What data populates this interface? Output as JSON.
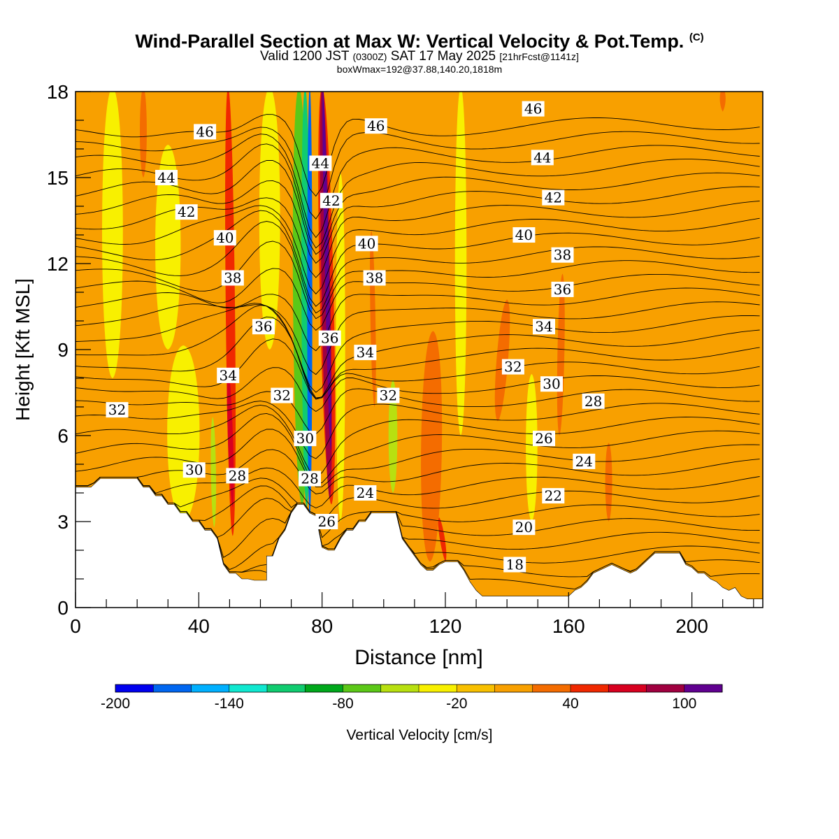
{
  "title": {
    "main": "Wind-Parallel Section at Max W: Vertical Velocity & Pot.Temp.",
    "mark": "(C)",
    "valid": "Valid 1200 JST",
    "valid_utc": "(0300Z)",
    "date": "SAT 17 May 2025",
    "fcst": "[21hrFcst@1141z]",
    "box": "boxWmax=192@37.88,140.20,1818m"
  },
  "chart_data": {
    "type": "heatmap",
    "xlabel": "Distance [nm]",
    "ylabel": "Height [Kft MSL]",
    "xlim": [
      0,
      223
    ],
    "ylim": [
      0,
      18
    ],
    "x_ticks": [
      0,
      40,
      80,
      120,
      160,
      200
    ],
    "y_ticks": [
      0,
      3,
      6,
      9,
      12,
      15,
      18
    ],
    "colorbar": {
      "label": "Vertical Velocity [cm/s]",
      "min": -200,
      "step": 20,
      "tick_labels": [
        -200,
        -140,
        -80,
        -20,
        40,
        100
      ],
      "colors": [
        "#0000ee",
        "#0066f0",
        "#00b0ff",
        "#10e8d0",
        "#10cc70",
        "#00a81c",
        "#5cc818",
        "#b8e010",
        "#f8f000",
        "#f8c000",
        "#f8a000",
        "#f46c00",
        "#f02800",
        "#d80020",
        "#a00040",
        "#600090"
      ]
    },
    "terrain_kft": [
      [
        0,
        4.2
      ],
      [
        5,
        4.2
      ],
      [
        8,
        4.5
      ],
      [
        10,
        4.5
      ],
      [
        20,
        4.5
      ],
      [
        22,
        4.2
      ],
      [
        24,
        4.2
      ],
      [
        26,
        3.9
      ],
      [
        28,
        3.9
      ],
      [
        30,
        3.6
      ],
      [
        32,
        3.6
      ],
      [
        34,
        3.3
      ],
      [
        36,
        3.3
      ],
      [
        38,
        3.0
      ],
      [
        40,
        3.0
      ],
      [
        42,
        2.7
      ],
      [
        44,
        2.7
      ],
      [
        46,
        2.4
      ],
      [
        48,
        1.5
      ],
      [
        50,
        1.2
      ],
      [
        52,
        1.2
      ],
      [
        54,
        1.0
      ],
      [
        56,
        1.0
      ],
      [
        58,
        0.95
      ],
      [
        62,
        0.95
      ],
      [
        62,
        1.8
      ],
      [
        64,
        1.8
      ],
      [
        66,
        2.4
      ],
      [
        68,
        2.7
      ],
      [
        70,
        3.3
      ],
      [
        72,
        3.6
      ],
      [
        74,
        3.6
      ],
      [
        76,
        3.3
      ],
      [
        78,
        3.2
      ],
      [
        80,
        2.1
      ],
      [
        82,
        2.0
      ],
      [
        84,
        2.0
      ],
      [
        86,
        2.4
      ],
      [
        88,
        2.7
      ],
      [
        90,
        2.7
      ],
      [
        92,
        3.0
      ],
      [
        94,
        3.0
      ],
      [
        96,
        3.3
      ],
      [
        100,
        3.3
      ],
      [
        104,
        3.3
      ],
      [
        106,
        2.4
      ],
      [
        108,
        2.1
      ],
      [
        110,
        1.8
      ],
      [
        112,
        1.5
      ],
      [
        114,
        1.3
      ],
      [
        116,
        1.3
      ],
      [
        118,
        1.5
      ],
      [
        120,
        1.6
      ],
      [
        124,
        1.6
      ],
      [
        126,
        1.3
      ],
      [
        128,
        0.9
      ],
      [
        130,
        0.6
      ],
      [
        132,
        0.4
      ],
      [
        160,
        0.4
      ],
      [
        162,
        0.6
      ],
      [
        164,
        0.7
      ],
      [
        166,
        0.9
      ],
      [
        168,
        1.2
      ],
      [
        170,
        1.3
      ],
      [
        172,
        1.4
      ],
      [
        174,
        1.5
      ],
      [
        176,
        1.4
      ],
      [
        178,
        1.3
      ],
      [
        180,
        1.2
      ],
      [
        182,
        1.3
      ],
      [
        184,
        1.5
      ],
      [
        186,
        1.7
      ],
      [
        188,
        1.9
      ],
      [
        196,
        1.9
      ],
      [
        198,
        1.5
      ],
      [
        200,
        1.4
      ],
      [
        202,
        1.2
      ],
      [
        204,
        1.2
      ],
      [
        206,
        1.0
      ],
      [
        208,
        0.9
      ],
      [
        210,
        0.7
      ],
      [
        212,
        0.6
      ],
      [
        214,
        0.7
      ],
      [
        216,
        0.4
      ],
      [
        218,
        0.3
      ],
      [
        223,
        0.3
      ]
    ],
    "w_features": [
      {
        "x": 76.0,
        "xb": 76.0,
        "w": 2.2,
        "y0": 3.2,
        "y1": 18,
        "v": -180
      },
      {
        "x": 74.5,
        "xb": 75.0,
        "w": 3.8,
        "y0": 3.5,
        "y1": 18,
        "v": -120
      },
      {
        "x": 72.5,
        "xb": 73.5,
        "w": 6.5,
        "y0": 3.6,
        "y1": 18,
        "v": -70
      },
      {
        "x": 80.0,
        "xb": 82.5,
        "w": 3.8,
        "y0": 3.8,
        "y1": 18,
        "v": 95
      },
      {
        "x": 80.3,
        "xb": 82.8,
        "w": 1.8,
        "y0": 5.5,
        "y1": 18,
        "v": 115
      },
      {
        "x": 80.0,
        "xb": 83.0,
        "w": 6.0,
        "y0": 3.6,
        "y1": 18,
        "v": 50
      },
      {
        "x": 49.5,
        "xb": 51.0,
        "w": 4.0,
        "y0": 2.5,
        "y1": 18,
        "v": 50
      },
      {
        "x": 49.5,
        "xb": 51.0,
        "w": 2.2,
        "y0": 3.5,
        "y1": 8.2,
        "v": 65
      },
      {
        "x": 44.5,
        "xb": 45.0,
        "w": 2.2,
        "y0": 2.8,
        "y1": 6.5,
        "v": -50
      },
      {
        "x": 103.0,
        "xb": 103.0,
        "w": 3.8,
        "y0": 4.0,
        "y1": 7.8,
        "v": -45
      },
      {
        "x": 22.0,
        "xb": 22.0,
        "w": 3.0,
        "y0": 15.0,
        "y1": 18,
        "v": 35
      },
      {
        "x": 116.0,
        "xb": 115.0,
        "w": 9.0,
        "y0": 1.6,
        "y1": 9.5,
        "v": 35
      },
      {
        "x": 118.0,
        "xb": 120.0,
        "w": 2.2,
        "y0": 1.6,
        "y1": 3.0,
        "v": 45
      },
      {
        "x": 140.0,
        "xb": 137.0,
        "w": 5.0,
        "y0": 6.5,
        "y1": 10.6,
        "v": 35
      },
      {
        "x": 158.0,
        "xb": 157.0,
        "w": 3.0,
        "y0": 6.0,
        "y1": 11.5,
        "v": 35
      },
      {
        "x": 173.0,
        "xb": 173.0,
        "w": 3.0,
        "y0": 3.0,
        "y1": 5.6,
        "v": 35
      },
      {
        "x": 96.0,
        "xb": 97.0,
        "w": 2.2,
        "y0": 7.0,
        "y1": 13.0,
        "v": 35
      },
      {
        "x": 210.0,
        "xb": 210.0,
        "w": 2.5,
        "y0": 17.3,
        "y1": 18,
        "v": 35
      },
      {
        "x": 35.0,
        "xb": 35.0,
        "w": 14.0,
        "y0": 3.0,
        "y1": 9.0,
        "v": -25
      },
      {
        "x": 12.0,
        "xb": 12.0,
        "w": 9.0,
        "y0": 8.0,
        "y1": 18,
        "v": -25
      },
      {
        "x": 30.0,
        "xb": 30.0,
        "w": 11.0,
        "y0": 9.0,
        "y1": 16.0,
        "v": -25
      },
      {
        "x": 63.0,
        "xb": 63.0,
        "w": 9.0,
        "y0": 9.0,
        "y1": 18,
        "v": -25
      },
      {
        "x": 86.0,
        "xb": 86.0,
        "w": 4.0,
        "y0": 3.0,
        "y1": 15.0,
        "v": -28
      },
      {
        "x": 125.0,
        "xb": 125.0,
        "w": 5.0,
        "y0": 6.0,
        "y1": 18,
        "v": -25
      },
      {
        "x": 148.0,
        "xb": 148.0,
        "w": 5.0,
        "y0": 3.0,
        "y1": 8.0,
        "v": -25
      }
    ],
    "theta_labels": [
      {
        "v": 46,
        "x": 42,
        "y": 16.6
      },
      {
        "v": 44,
        "x": 29.5,
        "y": 15.0
      },
      {
        "v": 42,
        "x": 36,
        "y": 13.8
      },
      {
        "v": 40,
        "x": 48.5,
        "y": 12.9
      },
      {
        "v": 38,
        "x": 51,
        "y": 11.5
      },
      {
        "v": 36,
        "x": 61,
        "y": 9.8
      },
      {
        "v": 34,
        "x": 49.5,
        "y": 8.1
      },
      {
        "v": 32,
        "x": 13.5,
        "y": 6.9
      },
      {
        "v": 30,
        "x": 38.5,
        "y": 4.8
      },
      {
        "v": 28,
        "x": 52.5,
        "y": 4.6
      },
      {
        "v": 32,
        "x": 67,
        "y": 7.4
      },
      {
        "v": 30,
        "x": 74.5,
        "y": 5.9
      },
      {
        "v": 28,
        "x": 76,
        "y": 4.5
      },
      {
        "v": 26,
        "x": 81.5,
        "y": 3.0
      },
      {
        "v": 24,
        "x": 94,
        "y": 4.0
      },
      {
        "v": 44,
        "x": 79.5,
        "y": 15.5
      },
      {
        "v": 42,
        "x": 83,
        "y": 14.2
      },
      {
        "v": 36,
        "x": 82.5,
        "y": 9.4
      },
      {
        "v": 40,
        "x": 94.5,
        "y": 12.7
      },
      {
        "v": 38,
        "x": 97,
        "y": 11.5
      },
      {
        "v": 34,
        "x": 94,
        "y": 8.9
      },
      {
        "v": 32,
        "x": 101.5,
        "y": 7.4
      },
      {
        "v": 46,
        "x": 97.5,
        "y": 16.8
      },
      {
        "v": 46,
        "x": 148.5,
        "y": 17.4
      },
      {
        "v": 44,
        "x": 151.5,
        "y": 15.7
      },
      {
        "v": 42,
        "x": 155,
        "y": 14.3
      },
      {
        "v": 40,
        "x": 145.5,
        "y": 13.0
      },
      {
        "v": 38,
        "x": 158,
        "y": 12.3
      },
      {
        "v": 36,
        "x": 158,
        "y": 11.1
      },
      {
        "v": 34,
        "x": 152,
        "y": 9.8
      },
      {
        "v": 32,
        "x": 142,
        "y": 8.4
      },
      {
        "v": 30,
        "x": 154.5,
        "y": 7.8
      },
      {
        "v": 28,
        "x": 168,
        "y": 7.2
      },
      {
        "v": 26,
        "x": 152,
        "y": 5.9
      },
      {
        "v": 24,
        "x": 165,
        "y": 5.1
      },
      {
        "v": 22,
        "x": 155,
        "y": 3.9
      },
      {
        "v": 20,
        "x": 145.5,
        "y": 2.8
      },
      {
        "v": 18,
        "x": 142.5,
        "y": 1.5
      }
    ]
  }
}
